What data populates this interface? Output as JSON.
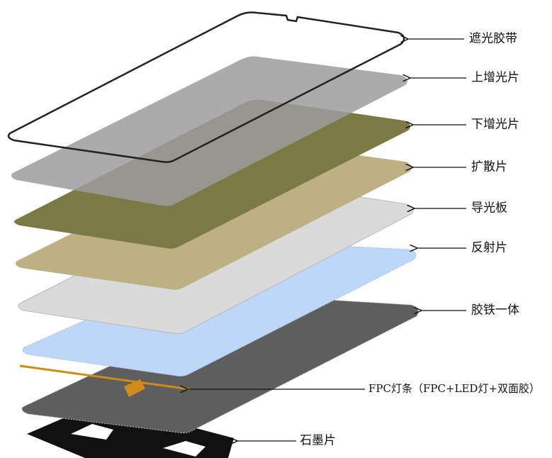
{
  "labels": [
    "遮光胶带",
    "上增光片",
    "下增光片",
    "扩散片",
    "导光板",
    "反射片",
    "胶铁一体",
    "FPC灯条（FPC+LED灯+双面胶）",
    "石墨片"
  ]
}
